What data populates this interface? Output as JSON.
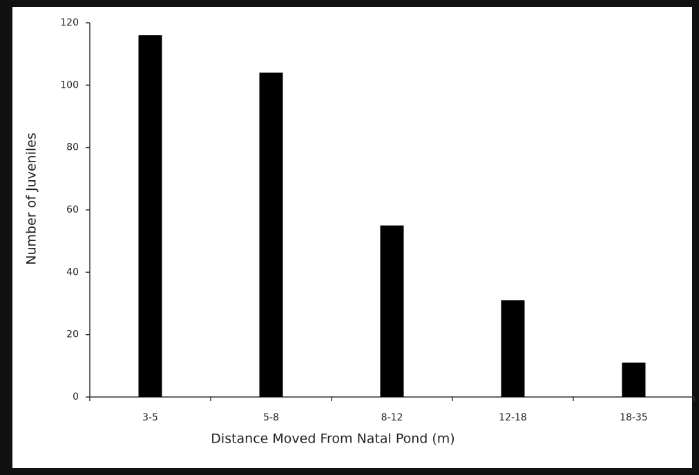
{
  "chart_data": {
    "type": "bar",
    "x_label": "Distance Moved From Natal Pond (m)",
    "y_label": "Number of Juveniles",
    "categories": [
      "3-5",
      "5-8",
      "8-12",
      "12-18",
      "18-35"
    ],
    "values": [
      116,
      104,
      55,
      31,
      11
    ],
    "color": "#000000",
    "ylim": [
      0,
      120
    ],
    "yticks": [
      0,
      20,
      40,
      60,
      80,
      100,
      120
    ],
    "grid": false
  }
}
